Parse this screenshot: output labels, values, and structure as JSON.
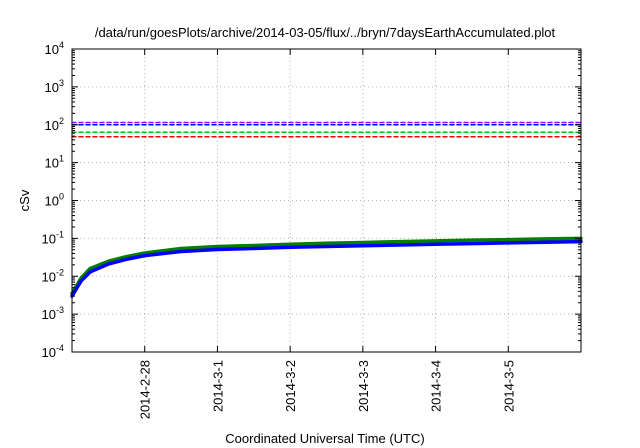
{
  "chart_data": {
    "type": "line",
    "title": "/data/run/goesPlots/archive/2014-03-05/flux/../bryn/7daysEarthAccumulated.plot",
    "xlabel": "Coordinated Universal Time (UTC)",
    "ylabel": "cSv",
    "y_scale": "log",
    "ylim": [
      0.0001,
      10000
    ],
    "y_ticks": [
      {
        "base": "10",
        "exp": "-4",
        "value": 0.0001
      },
      {
        "base": "10",
        "exp": "-3",
        "value": 0.001
      },
      {
        "base": "10",
        "exp": "-2",
        "value": 0.01
      },
      {
        "base": "10",
        "exp": "-1",
        "value": 0.1
      },
      {
        "base": "10",
        "exp": "0",
        "value": 1
      },
      {
        "base": "10",
        "exp": "1",
        "value": 10
      },
      {
        "base": "10",
        "exp": "2",
        "value": 100
      },
      {
        "base": "10",
        "exp": "3",
        "value": 1000
      },
      {
        "base": "10",
        "exp": "4",
        "value": 10000
      }
    ],
    "xlim": [
      "2014-02-27T00:00",
      "2014-03-06T00:00"
    ],
    "x_ticks": [
      "2014-2-28",
      "2014-3-1",
      "2014-3-2",
      "2014-3-3",
      "2014-3-4",
      "2014-3-5"
    ],
    "x_tick_dates": [
      "2014-02-28",
      "2014-03-01",
      "2014-03-02",
      "2014-03-03",
      "2014-03-04",
      "2014-03-05"
    ],
    "grid": true,
    "series": [
      {
        "color": "#008000",
        "style": "solid",
        "x": [
          "2014-02-27T00:00",
          "2014-02-27T03:00",
          "2014-02-27T06:00",
          "2014-02-27T12:00",
          "2014-02-27T18:00",
          "2014-02-28T00:00",
          "2014-02-28T12:00",
          "2014-03-01T00:00",
          "2014-03-01T12:00",
          "2014-03-02T00:00",
          "2014-03-02T12:00",
          "2014-03-03T00:00",
          "2014-03-03T12:00",
          "2014-03-04T00:00",
          "2014-03-04T12:00",
          "2014-03-05T00:00",
          "2014-03-05T12:00",
          "2014-03-06T00:00"
        ],
        "y": [
          0.0035,
          0.009,
          0.016,
          0.025,
          0.033,
          0.041,
          0.054,
          0.061,
          0.065,
          0.07,
          0.074,
          0.078,
          0.082,
          0.086,
          0.09,
          0.093,
          0.097,
          0.1
        ]
      },
      {
        "color": "#0000ff",
        "style": "solid",
        "x": [
          "2014-02-27T00:00",
          "2014-02-27T03:00",
          "2014-02-27T06:00",
          "2014-02-27T12:00",
          "2014-02-27T18:00",
          "2014-02-28T00:00",
          "2014-02-28T12:00",
          "2014-03-01T00:00",
          "2014-03-01T12:00",
          "2014-03-02T00:00",
          "2014-03-02T12:00",
          "2014-03-03T00:00",
          "2014-03-03T12:00",
          "2014-03-04T00:00",
          "2014-03-04T12:00",
          "2014-03-05T00:00",
          "2014-03-05T12:00",
          "2014-03-06T00:00"
        ],
        "y": [
          0.003,
          0.0075,
          0.013,
          0.021,
          0.028,
          0.035,
          0.045,
          0.051,
          0.054,
          0.058,
          0.061,
          0.064,
          0.067,
          0.07,
          0.073,
          0.076,
          0.079,
          0.082
        ]
      },
      {
        "color": "#a000ff",
        "style": "dashed",
        "x": [
          "2014-02-27T00:00",
          "2014-03-06T00:00"
        ],
        "y": [
          115,
          115
        ]
      },
      {
        "color": "#0000ff",
        "style": "dashed",
        "x": [
          "2014-02-27T00:00",
          "2014-03-06T00:00"
        ],
        "y": [
          100,
          100
        ]
      },
      {
        "color": "#00c000",
        "style": "dashed",
        "x": [
          "2014-02-27T00:00",
          "2014-03-06T00:00"
        ],
        "y": [
          63,
          63
        ]
      },
      {
        "color": "#ff0000",
        "style": "dashed",
        "x": [
          "2014-02-27T00:00",
          "2014-03-06T00:00"
        ],
        "y": [
          48,
          48
        ]
      }
    ]
  }
}
